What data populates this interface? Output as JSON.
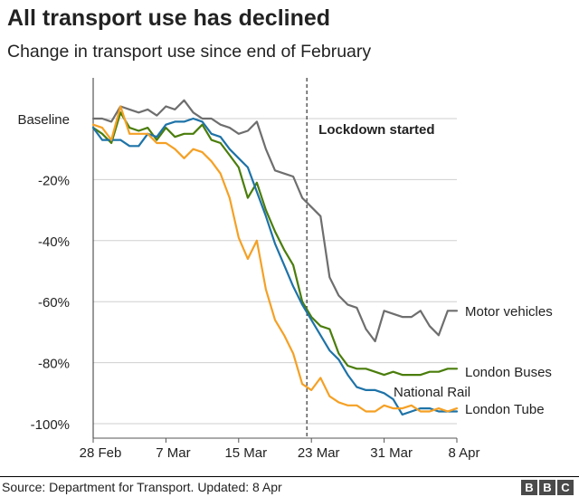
{
  "title": "All transport use has declined",
  "subtitle": "Change in transport use since end of February",
  "source": "Source: Department for Transport. Updated: 8 Apr",
  "logo": {
    "letters": [
      "B",
      "B",
      "C"
    ]
  },
  "chart_data": {
    "type": "line",
    "title": "All transport use has declined",
    "subtitle": "Change in transport use since end of February",
    "xlabel": "",
    "ylabel": "",
    "x": [
      "28 Feb",
      "29 Feb",
      "1 Mar",
      "2 Mar",
      "3 Mar",
      "4 Mar",
      "5 Mar",
      "6 Mar",
      "7 Mar",
      "8 Mar",
      "9 Mar",
      "10 Mar",
      "11 Mar",
      "12 Mar",
      "13 Mar",
      "14 Mar",
      "15 Mar",
      "16 Mar",
      "17 Mar",
      "18 Mar",
      "19 Mar",
      "20 Mar",
      "21 Mar",
      "22 Mar",
      "23 Mar",
      "24 Mar",
      "25 Mar",
      "26 Mar",
      "27 Mar",
      "28 Mar",
      "29 Mar",
      "30 Mar",
      "31 Mar",
      "1 Apr",
      "2 Apr",
      "3 Apr",
      "4 Apr",
      "5 Apr",
      "6 Apr",
      "7 Apr",
      "8 Apr"
    ],
    "xticks": [
      {
        "index": 0,
        "label": "28 Feb"
      },
      {
        "index": 8,
        "label": "7 Mar"
      },
      {
        "index": 16,
        "label": "15 Mar"
      },
      {
        "index": 24,
        "label": "23 Mar"
      },
      {
        "index": 32,
        "label": "31 Mar"
      },
      {
        "index": 40,
        "label": "8 Apr"
      }
    ],
    "yticks": [
      {
        "value": 0,
        "label": "Baseline"
      },
      {
        "value": -20,
        "label": "-20%"
      },
      {
        "value": -40,
        "label": "-40%"
      },
      {
        "value": -60,
        "label": "-60%"
      },
      {
        "value": -80,
        "label": "-80%"
      },
      {
        "value": -100,
        "label": "-100%"
      }
    ],
    "ylim": [
      -103,
      8
    ],
    "grid": true,
    "annotation": {
      "label": "Lockdown started",
      "x_index": 23.5
    },
    "series": [
      {
        "name": "Motor vehicles",
        "color": "#6e6e6e",
        "values": [
          0,
          0,
          -1,
          4,
          3,
          2,
          3,
          1,
          4,
          3,
          6,
          2,
          0,
          0,
          -2,
          -3,
          -5,
          -4,
          -1,
          -10,
          -17,
          -18,
          -19,
          -26,
          -29,
          -32,
          -52,
          -58,
          -61,
          -62,
          -69,
          -73,
          -63,
          -64,
          -65,
          -65,
          -63,
          -68,
          -71,
          -63,
          -63
        ]
      },
      {
        "name": "London Buses",
        "color": "#4a7d0b",
        "values": [
          -3,
          -5,
          -8,
          2,
          -3,
          -4,
          -3,
          -7,
          -3,
          -6,
          -5,
          -5,
          -2,
          -7,
          -8,
          -12,
          -16,
          -26,
          -21,
          -30,
          -37,
          -43,
          -48,
          -60,
          -65,
          -68,
          -69,
          -77,
          -81,
          -82,
          -82,
          -83,
          -84,
          -83,
          -84,
          -84,
          -84,
          -83,
          -83,
          -82,
          -82
        ]
      },
      {
        "name": "National Rail",
        "color": "#1e73a8",
        "values": [
          -3,
          -7,
          -7,
          -7,
          -9,
          -9,
          -5,
          -6,
          -2,
          -1,
          -1,
          0,
          -1,
          -5,
          -6,
          -10,
          -13,
          -16,
          -24,
          -32,
          -41,
          -48,
          -55,
          -61,
          -66,
          -71,
          -76,
          -79,
          -84,
          -88,
          -89,
          -89,
          -90,
          -92,
          -97,
          -96,
          -95,
          -95,
          -96,
          -96,
          -96
        ]
      },
      {
        "name": "London Tube",
        "color": "#f5a024",
        "values": [
          -2,
          -3,
          -7,
          4,
          -5,
          -5,
          -5,
          -8,
          -8,
          -10,
          -13,
          -10,
          -11,
          -14,
          -18,
          -26,
          -39,
          -46,
          -40,
          -56,
          -66,
          -71,
          -77,
          -87,
          -89,
          -85,
          -91,
          -93,
          -94,
          -94,
          -96,
          -96,
          -94,
          -95,
          -95,
          -94,
          -96,
          -96,
          -95,
          -96,
          -95
        ]
      }
    ],
    "series_labels": [
      "Motor vehicles",
      "London Buses",
      "National Rail",
      "London Tube"
    ]
  }
}
